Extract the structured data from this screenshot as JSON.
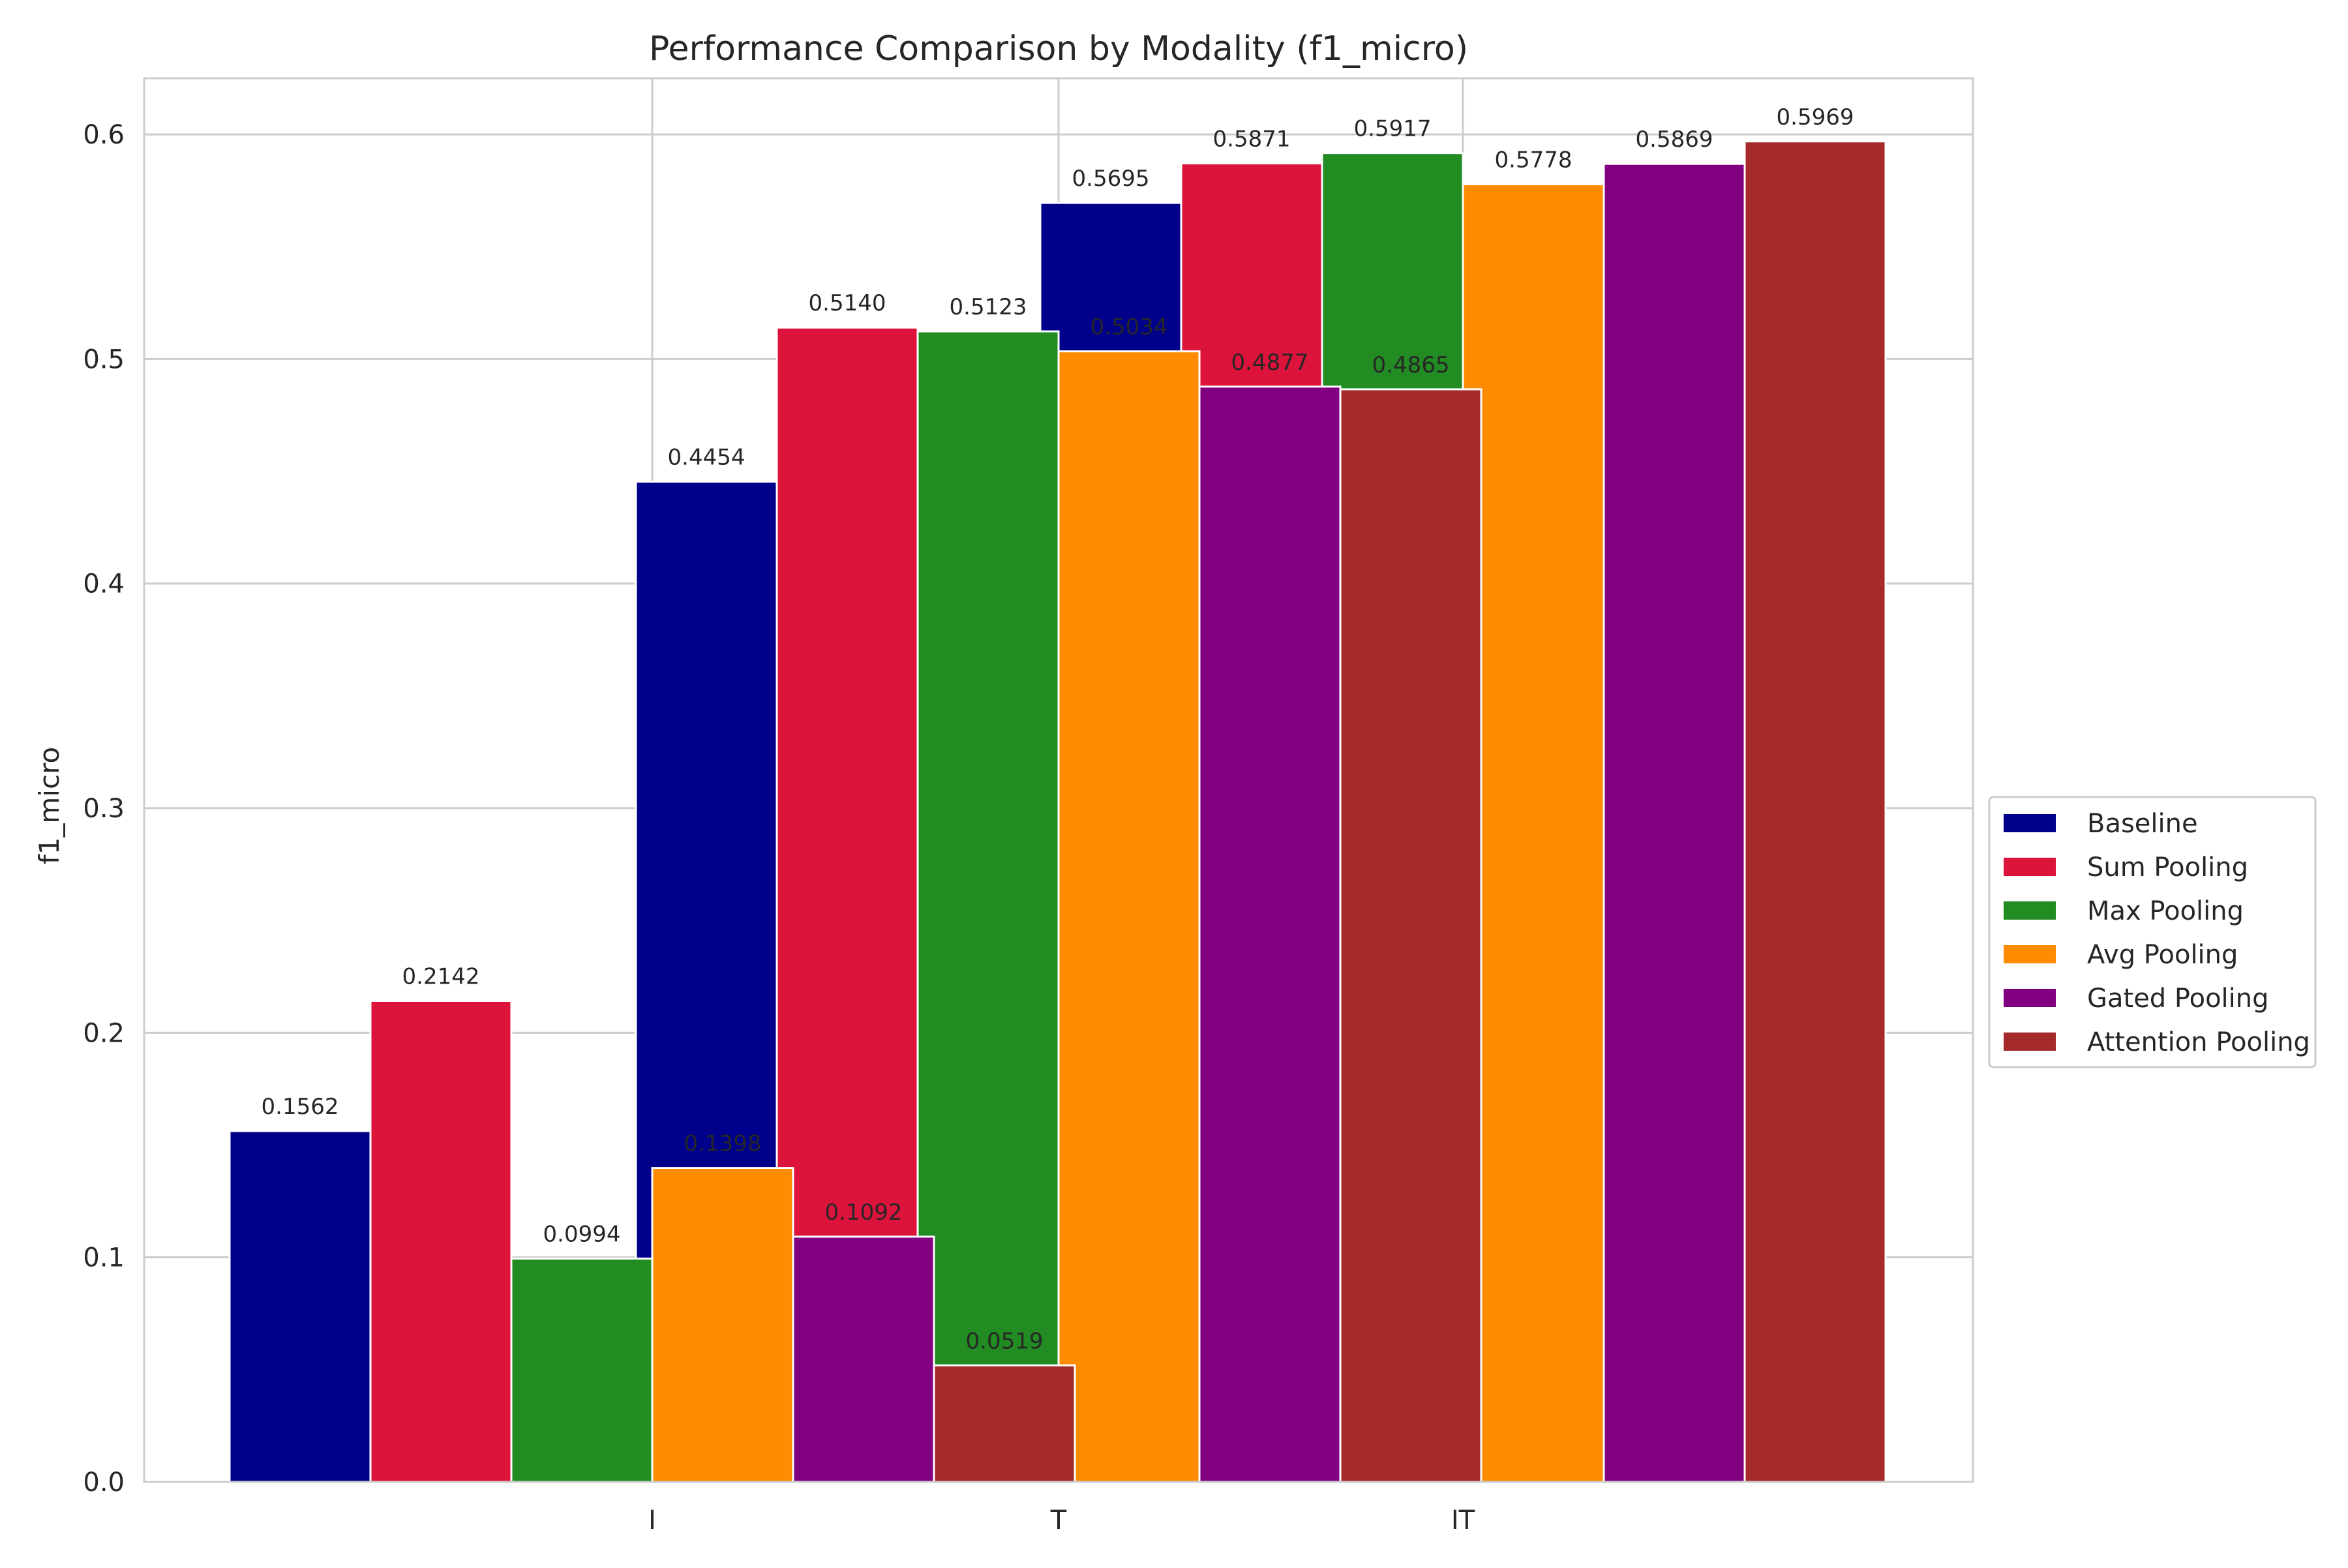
{
  "chart_data": {
    "type": "bar",
    "title": "Performance Comparison by Modality (f1_micro)",
    "xlabel": "",
    "ylabel": "f1_micro",
    "categories": [
      "I",
      "T",
      "IT"
    ],
    "ylim": [
      0,
      0.625
    ],
    "yticks": [
      "0.0",
      "0.1",
      "0.2",
      "0.3",
      "0.4",
      "0.5",
      "0.6"
    ],
    "grid": true,
    "legend_position": "center-right (outside)",
    "series": [
      {
        "name": "Baseline",
        "color": "#00008b",
        "values": [
          0.1562,
          0.4454,
          0.5695
        ],
        "labels": [
          "0.1562",
          "0.4454",
          "0.5695"
        ]
      },
      {
        "name": "Sum Pooling",
        "color": "#dc143c",
        "values": [
          0.2142,
          0.514,
          0.5871
        ],
        "labels": [
          "0.2142",
          "0.5140",
          "0.5871"
        ]
      },
      {
        "name": "Max Pooling",
        "color": "#228b22",
        "values": [
          0.0994,
          0.5123,
          0.5917
        ],
        "labels": [
          "0.0994",
          "0.5123",
          "0.5917"
        ]
      },
      {
        "name": "Avg Pooling",
        "color": "#ff8c00",
        "values": [
          0.1398,
          0.5034,
          0.5778
        ],
        "labels": [
          "0.1398",
          "0.5034",
          "0.5778"
        ]
      },
      {
        "name": "Gated Pooling",
        "color": "#800080",
        "values": [
          0.1092,
          0.4877,
          0.5869
        ],
        "labels": [
          "0.1092",
          "0.4877",
          "0.5869"
        ]
      },
      {
        "name": "Attention Pooling",
        "color": "#a52a2a",
        "values": [
          0.0519,
          0.4865,
          0.5969
        ],
        "labels": [
          "0.0519",
          "0.4865",
          "0.5969"
        ]
      }
    ]
  }
}
